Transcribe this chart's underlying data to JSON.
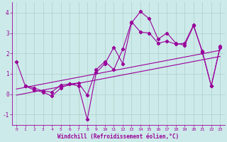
{
  "xlabel": "Windchill (Refroidissement éolien,°C)",
  "xlim": [
    -0.5,
    23.5
  ],
  "ylim": [
    -1.5,
    4.5
  ],
  "yticks": [
    -1,
    0,
    1,
    2,
    3,
    4
  ],
  "xticks": [
    0,
    1,
    2,
    3,
    4,
    5,
    6,
    7,
    8,
    9,
    10,
    11,
    12,
    13,
    14,
    15,
    16,
    17,
    18,
    19,
    20,
    21,
    22,
    23
  ],
  "bg_color": "#cdeaea",
  "grid_color": "#b0d4cc",
  "line_color": "#990099",
  "series1_x": [
    0,
    1,
    2,
    3,
    4,
    5,
    6,
    7,
    8,
    9,
    10,
    11,
    12,
    13,
    14,
    15,
    16,
    17,
    18,
    19,
    20,
    21,
    22,
    23
  ],
  "series1_y": [
    1.6,
    0.4,
    0.2,
    0.1,
    -0.1,
    0.3,
    0.5,
    0.4,
    -1.25,
    1.05,
    1.5,
    2.3,
    1.5,
    3.5,
    4.05,
    3.7,
    2.7,
    3.0,
    2.5,
    2.4,
    3.35,
    2.1,
    0.4,
    2.3
  ],
  "series2_x": [
    1,
    2,
    3,
    4,
    5,
    6,
    7,
    8,
    9,
    10,
    11,
    12,
    13,
    14,
    15,
    16,
    17,
    18,
    19,
    20,
    21,
    22,
    23
  ],
  "series2_y": [
    0.4,
    0.3,
    0.15,
    0.1,
    0.45,
    0.5,
    0.55,
    -0.05,
    1.2,
    1.6,
    1.2,
    2.2,
    3.55,
    3.05,
    3.0,
    2.5,
    2.6,
    2.45,
    2.5,
    3.4,
    2.05,
    0.4,
    2.35
  ],
  "trend1_x": [
    0,
    23
  ],
  "trend1_y": [
    0.25,
    2.15
  ],
  "trend2_x": [
    0,
    23
  ],
  "trend2_y": [
    -0.05,
    1.85
  ]
}
